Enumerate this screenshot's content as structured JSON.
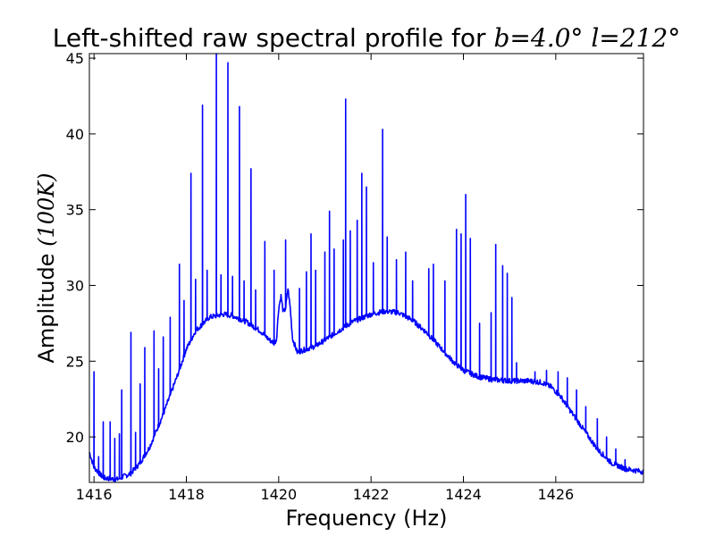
{
  "chart_data": {
    "type": "line",
    "title": {
      "text": "Left-shifted raw spectral profile for",
      "b_symbol": "b",
      "b_value": "4.0°",
      "l_symbol": "l",
      "l_value": "212°"
    },
    "xlabel": "Frequency (Hz)",
    "ylabel": {
      "text": "Amplitude",
      "unit": "(100K)"
    },
    "xlim": [
      1415.9,
      1427.9
    ],
    "ylim": [
      17,
      45.3
    ],
    "x_ticks": [
      1416,
      1418,
      1420,
      1422,
      1424,
      1426
    ],
    "y_ticks": [
      20,
      25,
      30,
      35,
      40,
      45
    ],
    "grid": false,
    "line_color": "#0000ff",
    "baseline": [
      [
        1415.9,
        19.0
      ],
      [
        1416.0,
        18.0
      ],
      [
        1416.2,
        17.3
      ],
      [
        1416.5,
        17.2
      ],
      [
        1416.8,
        17.6
      ],
      [
        1417.0,
        18.3
      ],
      [
        1417.2,
        19.3
      ],
      [
        1417.5,
        21.5
      ],
      [
        1417.8,
        24.0
      ],
      [
        1418.0,
        25.8
      ],
      [
        1418.2,
        27.0
      ],
      [
        1418.5,
        27.9
      ],
      [
        1418.8,
        28.1
      ],
      [
        1419.0,
        28.0
      ],
      [
        1419.3,
        27.6
      ],
      [
        1419.6,
        27.0
      ],
      [
        1419.8,
        26.4
      ],
      [
        1419.9,
        26.2
      ],
      [
        1419.95,
        26.4
      ],
      [
        1420.0,
        28.5
      ],
      [
        1420.05,
        29.3
      ],
      [
        1420.1,
        28.2
      ],
      [
        1420.15,
        28.5
      ],
      [
        1420.2,
        29.8
      ],
      [
        1420.25,
        28.5
      ],
      [
        1420.3,
        26.5
      ],
      [
        1420.4,
        25.6
      ],
      [
        1420.6,
        25.8
      ],
      [
        1420.8,
        26.0
      ],
      [
        1421.0,
        26.4
      ],
      [
        1421.3,
        27.0
      ],
      [
        1421.6,
        27.6
      ],
      [
        1422.0,
        28.1
      ],
      [
        1422.3,
        28.3
      ],
      [
        1422.6,
        28.2
      ],
      [
        1422.9,
        27.7
      ],
      [
        1423.2,
        26.9
      ],
      [
        1423.5,
        25.9
      ],
      [
        1423.8,
        24.9
      ],
      [
        1424.0,
        24.4
      ],
      [
        1424.3,
        24.0
      ],
      [
        1424.6,
        23.8
      ],
      [
        1425.0,
        23.7
      ],
      [
        1425.4,
        23.7
      ],
      [
        1425.7,
        23.6
      ],
      [
        1425.9,
        23.3
      ],
      [
        1426.1,
        22.7
      ],
      [
        1426.3,
        21.8
      ],
      [
        1426.6,
        20.5
      ],
      [
        1426.9,
        19.2
      ],
      [
        1427.2,
        18.3
      ],
      [
        1427.5,
        17.9
      ],
      [
        1427.9,
        17.7
      ]
    ],
    "spikes": [
      [
        1416.0,
        24.3
      ],
      [
        1416.1,
        18.7
      ],
      [
        1416.2,
        21.0
      ],
      [
        1416.35,
        21.0
      ],
      [
        1416.45,
        19.9
      ],
      [
        1416.55,
        20.2
      ],
      [
        1416.6,
        23.1
      ],
      [
        1416.8,
        26.9
      ],
      [
        1416.9,
        20.3
      ],
      [
        1417.0,
        23.5
      ],
      [
        1417.1,
        25.9
      ],
      [
        1417.3,
        27.0
      ],
      [
        1417.4,
        24.5
      ],
      [
        1417.5,
        26.6
      ],
      [
        1417.65,
        27.9
      ],
      [
        1417.85,
        31.4
      ],
      [
        1417.95,
        29.0
      ],
      [
        1418.1,
        37.4
      ],
      [
        1418.2,
        30.4
      ],
      [
        1418.35,
        41.9
      ],
      [
        1418.45,
        31.0
      ],
      [
        1418.65,
        45.3
      ],
      [
        1418.75,
        30.7
      ],
      [
        1418.9,
        44.7
      ],
      [
        1419.0,
        30.6
      ],
      [
        1419.15,
        41.8
      ],
      [
        1419.25,
        30.3
      ],
      [
        1419.4,
        37.7
      ],
      [
        1419.5,
        29.7
      ],
      [
        1419.7,
        32.9
      ],
      [
        1419.9,
        31.0
      ],
      [
        1420.15,
        33.0
      ],
      [
        1420.45,
        29.8
      ],
      [
        1420.6,
        30.9
      ],
      [
        1420.7,
        33.4
      ],
      [
        1420.8,
        31.0
      ],
      [
        1421.0,
        32.2
      ],
      [
        1421.1,
        34.9
      ],
      [
        1421.2,
        32.4
      ],
      [
        1421.4,
        33.0
      ],
      [
        1421.45,
        42.3
      ],
      [
        1421.55,
        33.6
      ],
      [
        1421.7,
        34.3
      ],
      [
        1421.8,
        37.4
      ],
      [
        1421.9,
        36.5
      ],
      [
        1422.05,
        31.5
      ],
      [
        1422.25,
        40.3
      ],
      [
        1422.35,
        33.2
      ],
      [
        1422.55,
        31.7
      ],
      [
        1422.75,
        32.2
      ],
      [
        1422.9,
        30.3
      ],
      [
        1423.25,
        31.1
      ],
      [
        1423.35,
        31.4
      ],
      [
        1423.6,
        30.3
      ],
      [
        1423.85,
        33.7
      ],
      [
        1423.95,
        33.4
      ],
      [
        1424.05,
        36.0
      ],
      [
        1424.15,
        33.1
      ],
      [
        1424.35,
        27.5
      ],
      [
        1424.6,
        28.2
      ],
      [
        1424.7,
        32.7
      ],
      [
        1424.85,
        31.3
      ],
      [
        1424.95,
        30.8
      ],
      [
        1425.05,
        29.2
      ],
      [
        1425.15,
        24.9
      ],
      [
        1425.55,
        24.3
      ],
      [
        1425.8,
        24.4
      ],
      [
        1426.05,
        24.3
      ],
      [
        1426.25,
        23.9
      ],
      [
        1426.45,
        23.1
      ],
      [
        1426.65,
        22.0
      ],
      [
        1426.9,
        21.2
      ],
      [
        1427.1,
        20.0
      ],
      [
        1427.3,
        19.2
      ],
      [
        1427.5,
        18.5
      ]
    ]
  }
}
